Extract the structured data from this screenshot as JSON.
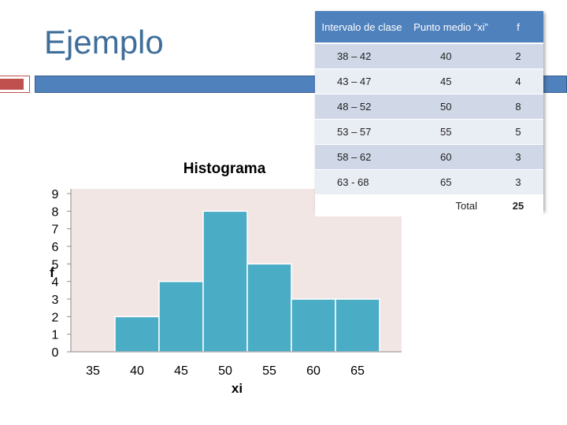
{
  "slide": {
    "title": "Ejemplo"
  },
  "table": {
    "headers": [
      "Intervalo de clase",
      "Punto medio “xi”",
      "f"
    ],
    "rows": [
      {
        "interval": "38 – 42",
        "midpoint": "40",
        "f": "2"
      },
      {
        "interval": "43 – 47",
        "midpoint": "45",
        "f": "4"
      },
      {
        "interval": "48 – 52",
        "midpoint": "50",
        "f": "8"
      },
      {
        "interval": "53 – 57",
        "midpoint": "55",
        "f": "5"
      },
      {
        "interval": "58 – 62",
        "midpoint": "60",
        "f": "3"
      },
      {
        "interval": "63  - 68",
        "midpoint": "65",
        "f": "3"
      }
    ],
    "total_label": "Total",
    "total_value": "25"
  },
  "colors": {
    "accent": "#4f81bd",
    "bar": "#4bacc6",
    "plot_bg": "#f2e6e4",
    "title": "#3f6e9a",
    "accent_red": "#c0504d"
  },
  "chart_data": {
    "type": "bar",
    "title": "Histograma",
    "xlabel": "xi",
    "ylabel": "f",
    "x_ticks": [
      "35",
      "40",
      "45",
      "50",
      "55",
      "60",
      "65"
    ],
    "y_ticks": [
      "0",
      "1",
      "2",
      "3",
      "4",
      "5",
      "6",
      "7",
      "8",
      "9"
    ],
    "categories": [
      "40",
      "45",
      "50",
      "55",
      "60",
      "65"
    ],
    "values": [
      2,
      4,
      8,
      5,
      3,
      3
    ],
    "ylim": [
      0,
      9
    ],
    "xlim": [
      32.5,
      70
    ],
    "bin_width": 5,
    "grid": false
  }
}
